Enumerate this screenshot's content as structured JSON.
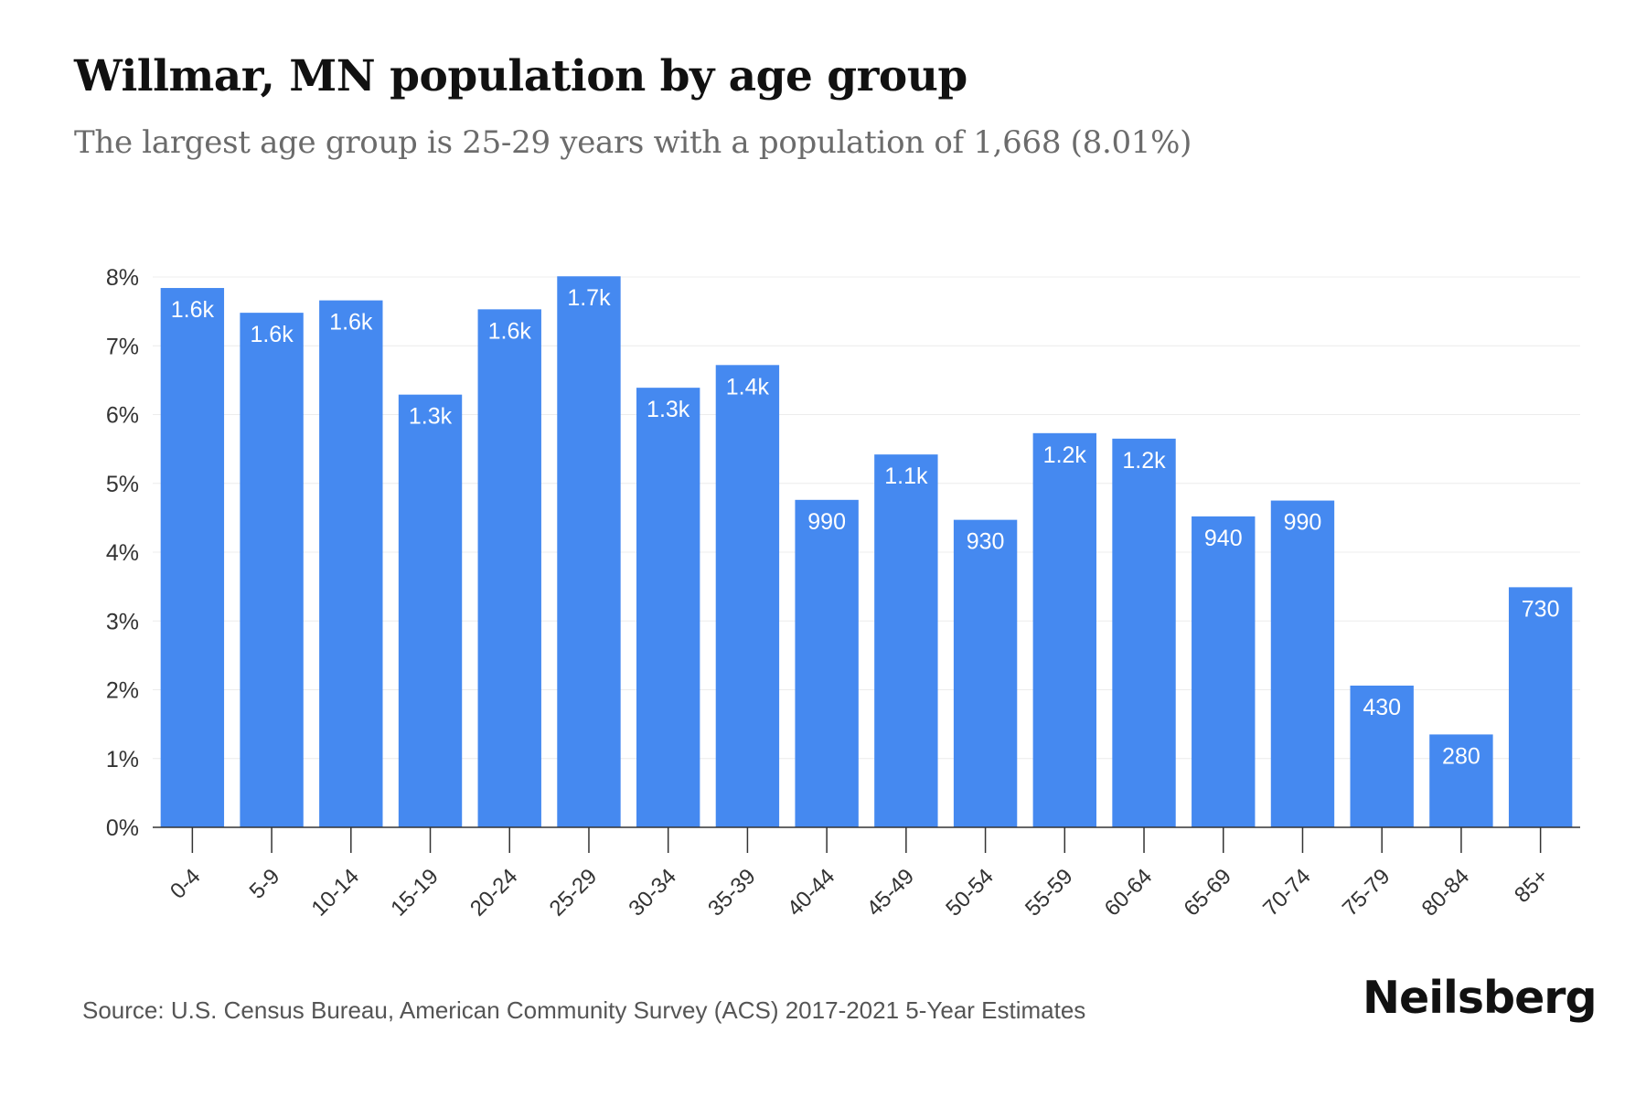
{
  "header": {
    "title": "Willmar, MN population by age group",
    "subtitle": "The largest age group is 25-29 years with a population of 1,668 (8.01%)"
  },
  "footer": {
    "source": "Source: U.S. Census Bureau, American Community Survey (ACS) 2017-2021 5-Year Estimates",
    "brand": "Neilsberg"
  },
  "colors": {
    "bar": "#4589f0",
    "bar_label": "#ffffff",
    "grid": "#ececec",
    "axis": "#333333",
    "tick_text": "#333333"
  },
  "chart_data": {
    "type": "bar",
    "title": "Willmar, MN population by age group",
    "subtitle": "The largest age group is 25-29 years with a population of 1,668 (8.01%)",
    "xlabel": "",
    "ylabel": "",
    "ylim": [
      0,
      8
    ],
    "yticks": [
      "0%",
      "1%",
      "2%",
      "3%",
      "4%",
      "5%",
      "6%",
      "7%",
      "8%"
    ],
    "grid": true,
    "categories": [
      "0-4",
      "5-9",
      "10-14",
      "15-19",
      "20-24",
      "25-29",
      "30-34",
      "35-39",
      "40-44",
      "45-49",
      "50-54",
      "55-59",
      "60-64",
      "65-69",
      "70-74",
      "75-79",
      "80-84",
      "85+"
    ],
    "values": [
      7.84,
      7.48,
      7.66,
      6.29,
      7.53,
      8.01,
      6.39,
      6.72,
      4.76,
      5.42,
      4.47,
      5.73,
      5.65,
      4.52,
      4.75,
      2.06,
      1.35,
      3.49
    ],
    "labels": [
      "1.6k",
      "1.6k",
      "1.6k",
      "1.3k",
      "1.6k",
      "1.7k",
      "1.3k",
      "1.4k",
      "990",
      "1.1k",
      "930",
      "1.2k",
      "1.2k",
      "940",
      "990",
      "430",
      "280",
      "730"
    ]
  }
}
